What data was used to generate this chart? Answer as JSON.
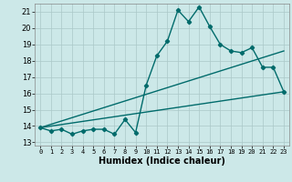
{
  "xlabel": "Humidex (Indice chaleur)",
  "bg_color": "#cce8e8",
  "grid_color": "#aac8c8",
  "line_color": "#006b6b",
  "xlim": [
    -0.5,
    23.5
  ],
  "ylim": [
    12.8,
    21.5
  ],
  "xticks": [
    0,
    1,
    2,
    3,
    4,
    5,
    6,
    7,
    8,
    9,
    10,
    11,
    12,
    13,
    14,
    15,
    16,
    17,
    18,
    19,
    20,
    21,
    22,
    23
  ],
  "yticks": [
    13,
    14,
    15,
    16,
    17,
    18,
    19,
    20,
    21
  ],
  "line1_x": [
    0,
    1,
    2,
    3,
    4,
    5,
    6,
    7,
    8,
    9,
    10,
    11,
    12,
    13,
    14,
    15,
    16,
    17,
    18,
    19,
    20,
    21,
    22,
    23
  ],
  "line1_y": [
    13.9,
    13.7,
    13.8,
    13.5,
    13.7,
    13.8,
    13.8,
    13.5,
    14.4,
    13.6,
    16.5,
    18.3,
    19.2,
    21.1,
    20.4,
    21.3,
    20.1,
    19.0,
    18.6,
    18.5,
    18.8,
    17.6,
    17.6,
    16.1
  ],
  "line2_x": [
    0,
    23
  ],
  "line2_y": [
    13.9,
    18.6
  ],
  "line3_x": [
    0,
    23
  ],
  "line3_y": [
    13.9,
    16.1
  ],
  "marker": "D",
  "marker_size": 2.2,
  "line_width": 1.0
}
